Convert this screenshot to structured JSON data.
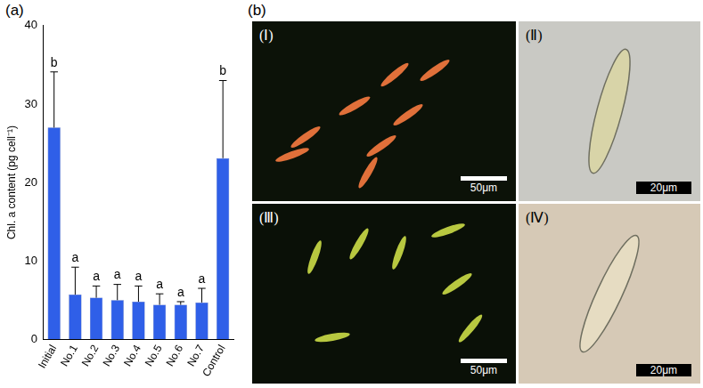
{
  "chart_data": {
    "type": "bar",
    "panel_label": "(a)",
    "y_label": "Chl. a content (pg cell⁻¹)",
    "categories": [
      "Initial",
      "No.1",
      "No.2",
      "No.3",
      "No.4",
      "No.5",
      "No.6",
      "No.7",
      "Control"
    ],
    "values": [
      27.0,
      5.7,
      5.3,
      5.0,
      4.8,
      4.4,
      4.4,
      4.7,
      23.1
    ],
    "error": [
      7.1,
      3.5,
      1.5,
      2.0,
      2.0,
      1.4,
      0.4,
      1.8,
      9.9
    ],
    "annotations": [
      "b",
      "a",
      "a",
      "a",
      "a",
      "a",
      "a",
      "a",
      "b"
    ],
    "color": "#2f5fe8",
    "ylim": [
      0,
      40
    ],
    "yticks": [
      0,
      10,
      20,
      30,
      40
    ],
    "grid": false
  },
  "panel_b": {
    "label": "(b)",
    "images": [
      {
        "label": "(Ⅰ)",
        "scale_bar": "50μm"
      },
      {
        "label": "(Ⅱ)",
        "scale_bar": "20μm"
      },
      {
        "label": "(Ⅲ)",
        "scale_bar": "50μm"
      },
      {
        "label": "(Ⅳ)",
        "scale_bar": "20μm"
      }
    ]
  }
}
